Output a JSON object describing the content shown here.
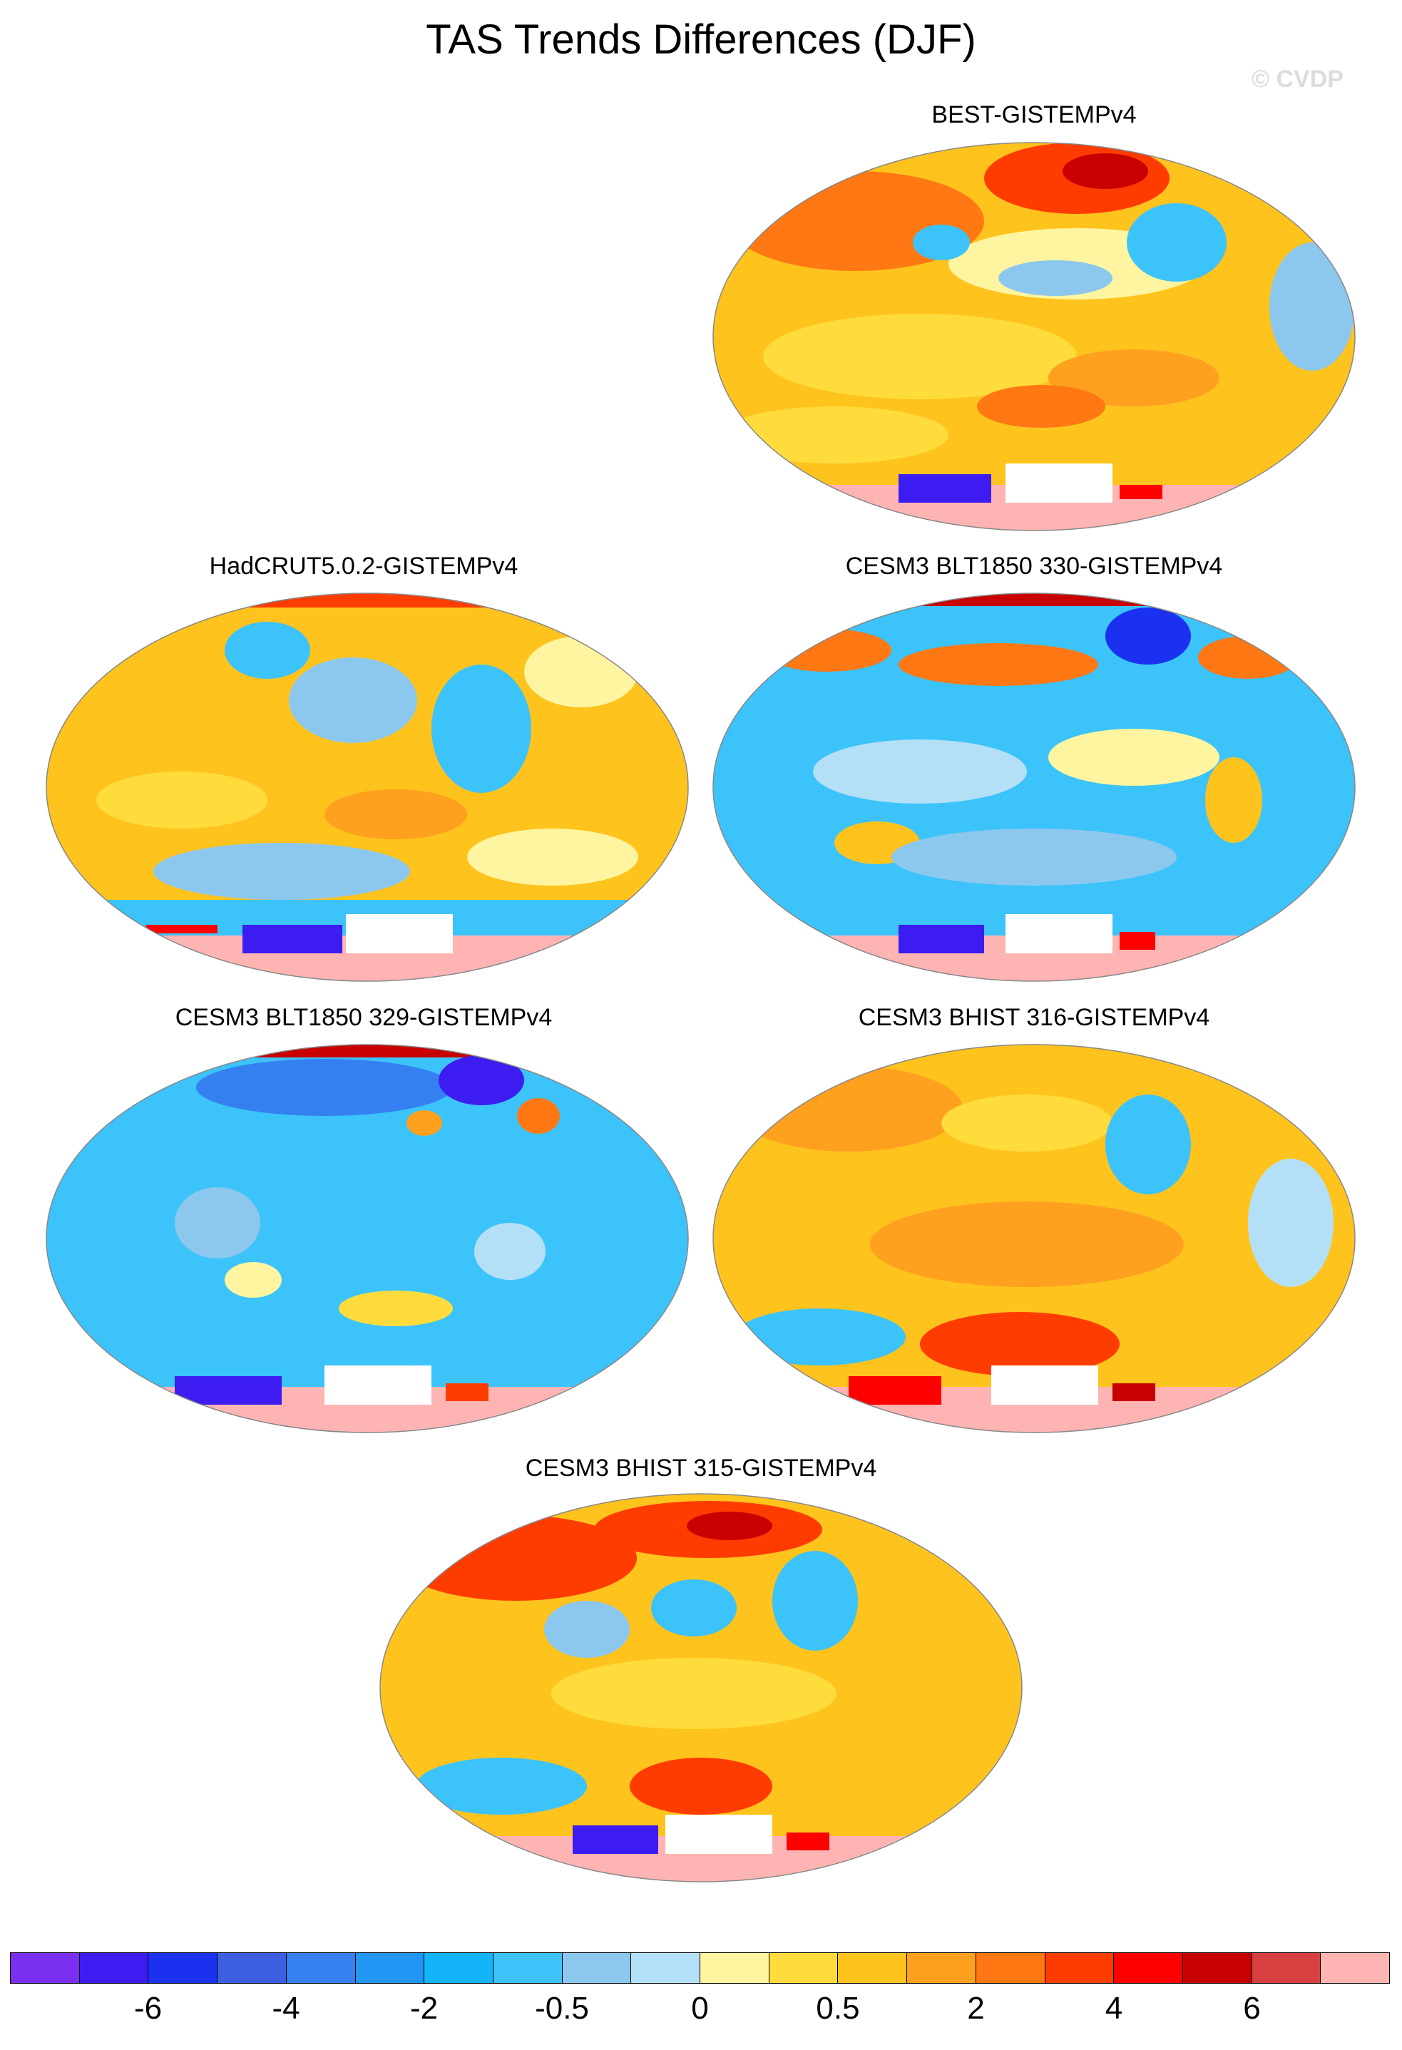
{
  "title": "TAS Trends Differences (DJF)",
  "credit": "© CVDP",
  "panels": [
    {
      "id": "best",
      "label": "BEST-GISTEMPv4",
      "pattern": "warm-red-arctic"
    },
    {
      "id": "hadcrut",
      "label": "HadCRUT5.0.2-GISTEMPv4",
      "pattern": "warm"
    },
    {
      "id": "blt330",
      "label": "CESM3 BLT1850 330-GISTEMPv4",
      "pattern": "cool-mixed"
    },
    {
      "id": "blt329",
      "label": "CESM3 BLT1850 329-GISTEMPv4",
      "pattern": "cool"
    },
    {
      "id": "bhist316",
      "label": "CESM3 BHIST 316-GISTEMPv4",
      "pattern": "warm"
    },
    {
      "id": "bhist315",
      "label": "CESM3 BHIST 315-GISTEMPv4",
      "pattern": "warm-red-arctic"
    }
  ],
  "colorbar": {
    "colors": [
      "#7b2ff0",
      "#3c1cf0",
      "#1a32f0",
      "#3c5fe0",
      "#3580f0",
      "#2196f3",
      "#14b4fa",
      "#3cc3fa",
      "#8cc8ee",
      "#b4e0f7",
      "#fff5a0",
      "#ffdc3c",
      "#ffc31e",
      "#ffa01e",
      "#ff7814",
      "#ff3c00",
      "#ff0000",
      "#c80000",
      "#d74040",
      "#ffb4b4"
    ],
    "tick_labels": [
      "-6",
      "-4",
      "-2",
      "-0.5",
      "0",
      "0.5",
      "2",
      "4",
      "6"
    ]
  }
}
